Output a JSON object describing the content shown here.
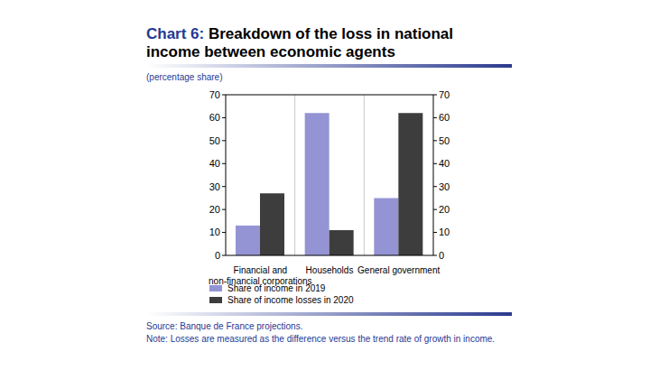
{
  "chart_data": {
    "type": "bar",
    "title": "Chart 6: Breakdown of the loss in national income between economic agents",
    "subtitle": "(percentage share)",
    "categories": [
      "Financial and non-financial corporations",
      "Households",
      "General government"
    ],
    "series": [
      {
        "name": "Share of income in 2019",
        "color": "#9494d4",
        "values": [
          13,
          62,
          25
        ]
      },
      {
        "name": "Share of income losses in 2020",
        "color": "#3d3d3d",
        "values": [
          27,
          11,
          62
        ]
      }
    ],
    "ylim": [
      0,
      70
    ],
    "yticks": [
      0,
      10,
      20,
      30,
      40,
      50,
      60,
      70
    ],
    "y2lim": [
      0,
      70
    ],
    "y2ticks": [
      0,
      10,
      20,
      30,
      40,
      50,
      60,
      70
    ],
    "grid": true,
    "legend": "bottom",
    "source": "Source: Banque de France projections.",
    "note": "Note: Losses are measured as the difference versus the trend rate of growth in income."
  }
}
